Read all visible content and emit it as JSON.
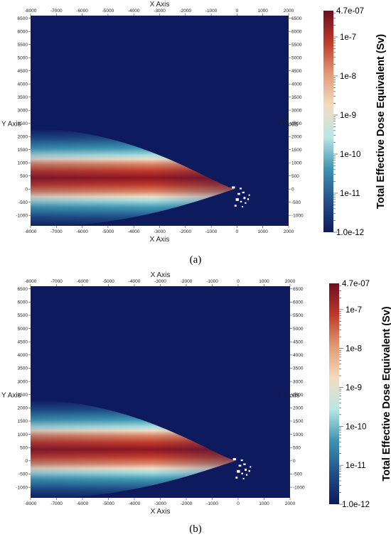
{
  "chart_data": [
    {
      "type": "heatmap",
      "panel": "a",
      "caption": "(a)",
      "xlabel": "X Axis",
      "ylabel": "Y Axis",
      "xlim": [
        -8000,
        2000
      ],
      "ylim": [
        -1400,
        6600
      ],
      "xticks": [
        "-8000",
        "-7000",
        "-6000",
        "-5000",
        "-4000",
        "-3000",
        "-2000",
        "-1000",
        "0",
        "1000",
        "2000"
      ],
      "yticks": [
        "-1000",
        "-500",
        "0",
        "500",
        "1000",
        "1500",
        "2000",
        "2500",
        "3000",
        "3500",
        "4000",
        "4500",
        "5000",
        "5500",
        "6000",
        "6500"
      ],
      "colorbar": {
        "title": "Total Effective Dose Equivalent (Sv)",
        "scale": "log",
        "max_label": "4.7e-07",
        "min_label": "1.0e-12",
        "labels": [
          "1e-7",
          "1e-8",
          "1e-9",
          "1e-10",
          "1e-11"
        ],
        "colors": [
          "#0d1a5e",
          "#23508a",
          "#3e93b0",
          "#b8e6e6",
          "#f3dcc0",
          "#e39a75",
          "#bf3a2b",
          "#6e0d1f"
        ]
      },
      "plume": {
        "source_x": -100,
        "source_y": 0,
        "direction": "-x",
        "min_value": 1e-12,
        "max_value": 4.7e-07
      },
      "buildings": "white building footprints near origin"
    },
    {
      "type": "heatmap",
      "panel": "b",
      "caption": "(b)",
      "xlabel": "X Axis",
      "ylabel": "Y Axis",
      "xlim": [
        -8000,
        2000
      ],
      "ylim": [
        -1400,
        6600
      ],
      "xticks": [
        "-8000",
        "-7000",
        "-6000",
        "-5000",
        "-4000",
        "-3000",
        "-2000",
        "-1000",
        "0",
        "1000",
        "2000"
      ],
      "yticks": [
        "-1000",
        "-500",
        "0",
        "500",
        "1000",
        "1500",
        "2000",
        "2500",
        "3000",
        "3500",
        "4000",
        "4500",
        "5000",
        "5500",
        "6000",
        "6500"
      ],
      "colorbar": {
        "title": "Total Effective Dose Equivalent (Sv)",
        "scale": "log",
        "max_label": "4.7e-07",
        "min_label": "1.0e-12",
        "labels": [
          "1e-7",
          "1e-8",
          "1e-9",
          "1e-10",
          "1e-11"
        ],
        "colors": [
          "#0d1a5e",
          "#23508a",
          "#3e93b0",
          "#b8e6e6",
          "#f3dcc0",
          "#e39a75",
          "#bf3a2b",
          "#6e0d1f"
        ]
      },
      "plume": {
        "source_x": -100,
        "source_y": 0,
        "direction": "-x",
        "min_value": 1e-12,
        "max_value": 4.7e-07
      },
      "buildings": "white building footprints near origin"
    }
  ]
}
